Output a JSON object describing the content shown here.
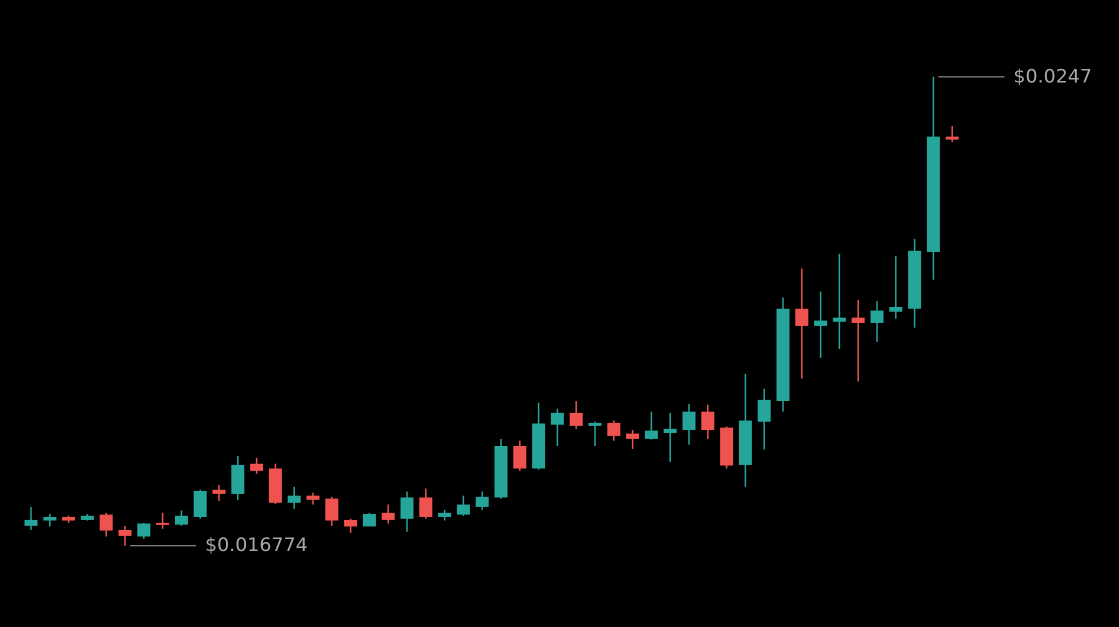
{
  "chart_data": {
    "type": "candlestick",
    "up_color": "#26a69a",
    "down_color": "#ef5350",
    "ylim": [
      0.0154,
      0.026
    ],
    "open": [
      0.01711,
      0.0172,
      0.01726,
      0.01721,
      0.0173,
      0.01704,
      0.01693,
      0.01716,
      0.01713,
      0.01726,
      0.01772,
      0.01765,
      0.01816,
      0.01808,
      0.0175,
      0.01762,
      0.01757,
      0.01721,
      0.0171,
      0.01733,
      0.01723,
      0.01759,
      0.01726,
      0.0173,
      0.01743,
      0.01759,
      0.01846,
      0.01808,
      0.01882,
      0.01902,
      0.0188,
      0.01885,
      0.01867,
      0.01858,
      0.01868,
      0.01873,
      0.01904,
      0.01877,
      0.01814,
      0.01887,
      0.01922,
      0.02078,
      0.02049,
      0.02056,
      0.02063,
      0.02054,
      0.02073,
      0.02078,
      0.02174,
      0.02369
    ],
    "high": [
      0.01743,
      0.01731,
      0.01728,
      0.01731,
      0.01733,
      0.01711,
      0.01716,
      0.01733,
      0.01737,
      0.01772,
      0.0178,
      0.01829,
      0.01826,
      0.01816,
      0.01777,
      0.01767,
      0.0176,
      0.01723,
      0.01733,
      0.01747,
      0.01769,
      0.01774,
      0.01738,
      0.01762,
      0.01769,
      0.01858,
      0.01855,
      0.01919,
      0.01909,
      0.01922,
      0.01887,
      0.01889,
      0.01873,
      0.01904,
      0.01902,
      0.01917,
      0.01916,
      0.01879,
      0.01968,
      0.01943,
      0.02097,
      0.02146,
      0.02107,
      0.02171,
      0.02093,
      0.02091,
      0.02167,
      0.02196,
      0.0247,
      0.02387
    ],
    "low": [
      0.01704,
      0.0171,
      0.01716,
      0.0172,
      0.01693,
      0.016774,
      0.01689,
      0.01706,
      0.01711,
      0.01723,
      0.01753,
      0.01755,
      0.01799,
      0.01748,
      0.0174,
      0.01747,
      0.01711,
      0.01699,
      0.0171,
      0.01715,
      0.01701,
      0.01723,
      0.0172,
      0.01728,
      0.01738,
      0.01757,
      0.01804,
      0.01806,
      0.01846,
      0.01875,
      0.01846,
      0.01855,
      0.01841,
      0.01857,
      0.01819,
      0.01848,
      0.01858,
      0.01808,
      0.01777,
      0.0184,
      0.01904,
      0.0196,
      0.01995,
      0.0201,
      0.01955,
      0.02022,
      0.02061,
      0.02046,
      0.02127,
      0.0236
    ],
    "close": [
      0.01721,
      0.01726,
      0.0172,
      0.01728,
      0.01703,
      0.01694,
      0.01715,
      0.01713,
      0.01728,
      0.0177,
      0.01765,
      0.01814,
      0.01804,
      0.0175,
      0.01762,
      0.01755,
      0.0172,
      0.0171,
      0.01731,
      0.01721,
      0.01759,
      0.01726,
      0.01733,
      0.01747,
      0.0176,
      0.01846,
      0.01808,
      0.01884,
      0.01902,
      0.0188,
      0.01885,
      0.01863,
      0.01858,
      0.01872,
      0.01875,
      0.01904,
      0.01873,
      0.01813,
      0.01889,
      0.01924,
      0.02078,
      0.02049,
      0.02058,
      0.02063,
      0.02054,
      0.02075,
      0.02081,
      0.02176,
      0.02369,
      0.02364
    ],
    "annotations": [
      {
        "text": "$0.0247",
        "value": 0.0247
      },
      {
        "text": "$0.016774",
        "value": 0.016774
      }
    ]
  }
}
